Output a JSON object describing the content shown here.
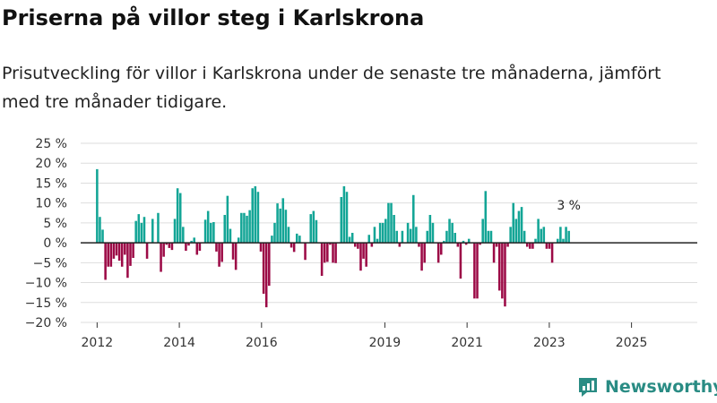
{
  "title": "Priserna på villor steg i Karlskrona",
  "subtitle": "Prisutveckling för villor i Karlskrona under de senaste tre månaderna, jämfört med tre månader tidigare.",
  "brand": {
    "name": "Newsworthy",
    "color": "#2a8c84",
    "icon": "newsworthy-logo-icon"
  },
  "colors": {
    "positive": "#13a596",
    "negative": "#9c0a46",
    "grid": "#dddddd",
    "zero": "#222222"
  },
  "chart_data": {
    "type": "bar",
    "title": "Priserna på villor steg i Karlskrona",
    "subtitle": "Prisutveckling för villor i Karlskrona under de senaste tre månaderna, jämfört med tre månader tidigare.",
    "xlabel": "",
    "ylabel": "",
    "unit": "%",
    "ylim": [
      -20,
      25
    ],
    "y_ticks": [
      25,
      20,
      15,
      10,
      5,
      0,
      -5,
      -10,
      -15,
      -20
    ],
    "y_tick_labels": [
      "25 %",
      "20 %",
      "15 %",
      "10 %",
      "5 %",
      "0 %",
      "−5 %",
      "−10 %",
      "−15 %",
      "−20 %"
    ],
    "grid": true,
    "x_range": [
      2011.6,
      2026.6
    ],
    "x_ticks": [
      2012,
      2014,
      2016,
      2019,
      2021,
      2023,
      2025
    ],
    "x_tick_labels": [
      "2012",
      "2014",
      "2016",
      "2019",
      "2021",
      "2023",
      "2025"
    ],
    "start": 2012.0,
    "step": 0.0675,
    "values": [
      18.5,
      6.5,
      3.3,
      -9.3,
      -6.0,
      -6.0,
      -4.0,
      -3.2,
      -4.5,
      -6.0,
      -3.0,
      -8.8,
      -5.8,
      -3.8,
      5.5,
      7.2,
      5.0,
      6.5,
      -4.0,
      0,
      6.0,
      0,
      7.5,
      -7.3,
      -3.5,
      -0.5,
      -1.3,
      -1.8,
      6.0,
      13.7,
      12.5,
      4.0,
      -2.0,
      -0.7,
      0.5,
      1.3,
      -3.0,
      -2.0,
      0,
      5.8,
      8.0,
      5.0,
      5.2,
      -2.2,
      -6.0,
      -4.8,
      7.0,
      11.8,
      3.5,
      -4.2,
      -6.8,
      1.3,
      7.5,
      7.5,
      6.8,
      8.2,
      13.7,
      14.2,
      12.8,
      -2.2,
      -12.8,
      -16.2,
      -10.8,
      1.8,
      5.0,
      9.9,
      8.6,
      11.2,
      8.3,
      4.0,
      -1.2,
      -2.3,
      2.3,
      1.8,
      0,
      -4.3,
      0,
      7.2,
      8.0,
      5.7,
      0,
      -8.3,
      -5.0,
      -4.8,
      -0.5,
      -5.0,
      -5.1,
      0,
      11.5,
      14.2,
      12.8,
      1.5,
      2.5,
      -1.0,
      -1.5,
      -7.0,
      -4.0,
      -6.0,
      2.0,
      -1.0,
      4.0,
      1.0,
      5.0,
      5.0,
      6.0,
      10.0,
      10.0,
      7.0,
      3.0,
      -1.0,
      3.0,
      0,
      5.0,
      3.5,
      12.0,
      4.0,
      -1.0,
      -7.0,
      -5.0,
      3.0,
      7.0,
      5.0,
      0,
      -5.0,
      -3.0,
      0.5,
      3.0,
      6.0,
      5.0,
      2.5,
      -1.0,
      -9.0,
      0.5,
      -0.5,
      1.0,
      0,
      -14.0,
      -14.0,
      -0.5,
      6.0,
      13.0,
      3.0,
      3.0,
      -5.0,
      -1.0,
      -12.0,
      -14.0,
      -16.0,
      -1.0,
      4.0,
      10.0,
      6.0,
      8.0,
      9.0,
      3.0,
      -1.0,
      -1.5,
      -1.5,
      1.0,
      6.0,
      3.5,
      4.0,
      -1.5,
      -1.5,
      -5.0,
      0,
      1.0,
      4.0,
      1.0,
      4.0,
      3.0
    ],
    "annotations": [
      {
        "label": "3 %",
        "value": 3
      }
    ]
  }
}
